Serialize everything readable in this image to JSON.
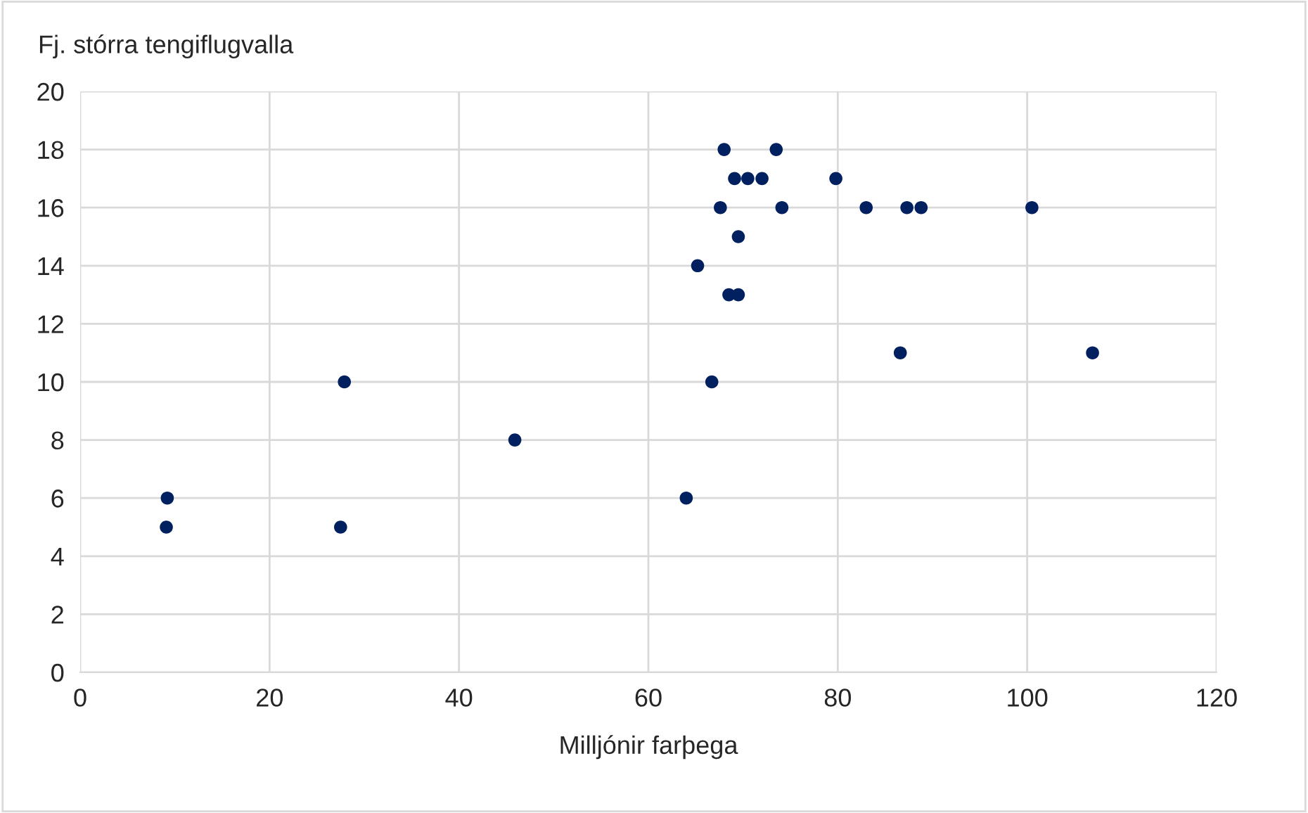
{
  "chart_data": {
    "type": "scatter",
    "xlabel": "Milljónir farþega",
    "ylabel": "Fj. stórra tengiflugvalla",
    "x": [
      9.2,
      9.1,
      27.5,
      27.9,
      45.9,
      64.0,
      66.7,
      65.2,
      67.6,
      68.0,
      68.5,
      69.5,
      69.1,
      69.5,
      70.5,
      72.0,
      73.5,
      74.1,
      79.8,
      83.0,
      86.6,
      87.3,
      88.8,
      100.5,
      106.9
    ],
    "values": [
      6,
      5,
      5,
      10,
      8,
      6,
      10,
      14,
      16,
      18,
      13,
      13,
      17,
      15,
      17,
      17,
      18,
      16,
      17,
      16,
      11,
      16,
      16,
      16,
      11
    ],
    "color": "#002060",
    "marker": "circle",
    "grid": true,
    "xlim": [
      0,
      120
    ],
    "xticks": [
      0,
      20,
      40,
      60,
      80,
      100,
      120
    ],
    "ylim": [
      0,
      20
    ],
    "yticks": [
      0,
      2,
      4,
      6,
      8,
      10,
      12,
      14,
      16,
      18,
      20
    ]
  }
}
